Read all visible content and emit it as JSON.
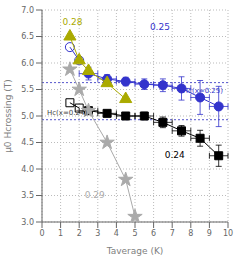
{
  "chart_data": {
    "type": "line",
    "xlabel": "Taverage (K)",
    "ylabel": "μ0 Hcrossing (T)",
    "xlim": [
      0,
      10
    ],
    "ylim": [
      3.0,
      7.0
    ],
    "xticks": [
      0,
      1,
      2,
      3,
      4,
      5,
      6,
      7,
      8,
      9,
      10
    ],
    "yticks": [
      {
        "value": 3.0,
        "label": "3.0"
      },
      {
        "value": 3.5,
        "label": "3.5"
      },
      {
        "value": 4.0,
        "label": "4.0"
      },
      {
        "value": 4.5,
        "label": "4.5"
      },
      {
        "value": 5.0,
        "label": "5.0"
      },
      {
        "value": 5.5,
        "label": "5.5"
      },
      {
        "value": 6.0,
        "label": "6.0"
      },
      {
        "value": 6.5,
        "label": "6.5"
      },
      {
        "value": 7.0,
        "label": "7.0"
      }
    ],
    "grid": true,
    "hlines": [
      {
        "y": 4.93,
        "color": "#5555cc",
        "label": "Hc(x=0.24)",
        "label_color": "#444444"
      },
      {
        "y": 5.63,
        "color": "#5555cc",
        "label": "Hc(x=0.25)",
        "label_color": "#3333cc"
      }
    ],
    "series": [
      {
        "color": "#000000",
        "marker": "square",
        "line_style": "solid",
        "x": [
          2.5,
          3.5,
          4.5,
          5.5,
          6.5,
          7.5,
          8.5,
          9.5
        ],
        "y": [
          5.1,
          5.05,
          5.0,
          5.0,
          4.88,
          4.72,
          4.58,
          4.25
        ],
        "xerr": [
          0.5,
          0.5,
          0.5,
          0.5,
          0.5,
          0.5,
          0.5,
          0.5
        ],
        "yerr": [
          0.05,
          0.05,
          0.05,
          0.07,
          0.1,
          0.1,
          0.15,
          0.2
        ]
      },
      {
        "color": "#000000",
        "marker": "open square",
        "line_style": "solid",
        "x": [
          1.5,
          2.0
        ],
        "y": [
          5.25,
          5.15
        ]
      },
      {
        "color": "#3333cc",
        "marker": "circle",
        "line_style": "solid",
        "x": [
          2.5,
          3.5,
          4.5,
          5.5,
          6.5,
          7.5,
          8.5,
          9.5
        ],
        "y": [
          5.8,
          5.7,
          5.65,
          5.6,
          5.58,
          5.52,
          5.35,
          5.18
        ],
        "xerr": [
          0.5,
          0.5,
          0.5,
          0.5,
          0.5,
          0.5,
          0.5,
          0.5
        ],
        "yerr": [
          0.12,
          0.08,
          0.08,
          0.1,
          0.12,
          0.22,
          0.32,
          0.38
        ]
      },
      {
        "color": "#3333cc",
        "marker": "open circle",
        "line_style": "solid",
        "x": [
          1.5,
          2.0
        ],
        "y": [
          6.3,
          6.05
        ]
      },
      {
        "color": "#aaaa00",
        "marker": "triangle",
        "line_style": "solid",
        "x": [
          1.5,
          2.0,
          2.5,
          3.5,
          4.5
        ],
        "y": [
          6.5,
          6.05,
          5.85,
          5.62,
          5.32
        ]
      },
      {
        "color": "#aaaaaa",
        "marker": "star",
        "line_style": "solid",
        "x": [
          1.5,
          2.0,
          2.5,
          3.5,
          4.5,
          5.0
        ],
        "y": [
          5.88,
          5.5,
          5.1,
          4.5,
          3.8,
          3.1
        ]
      }
    ],
    "annotations": [
      {
        "text": "0.28",
        "x": 1.1,
        "y": 6.72,
        "color": "#aaaa00"
      },
      {
        "text": "0.25",
        "x": 5.8,
        "y": 6.62,
        "color": "#3333cc"
      },
      {
        "text": "0.29",
        "x": 2.3,
        "y": 3.45,
        "color": "#aaaaaa"
      },
      {
        "text": "0.24",
        "x": 6.6,
        "y": 4.2,
        "color": "#000000"
      }
    ]
  }
}
